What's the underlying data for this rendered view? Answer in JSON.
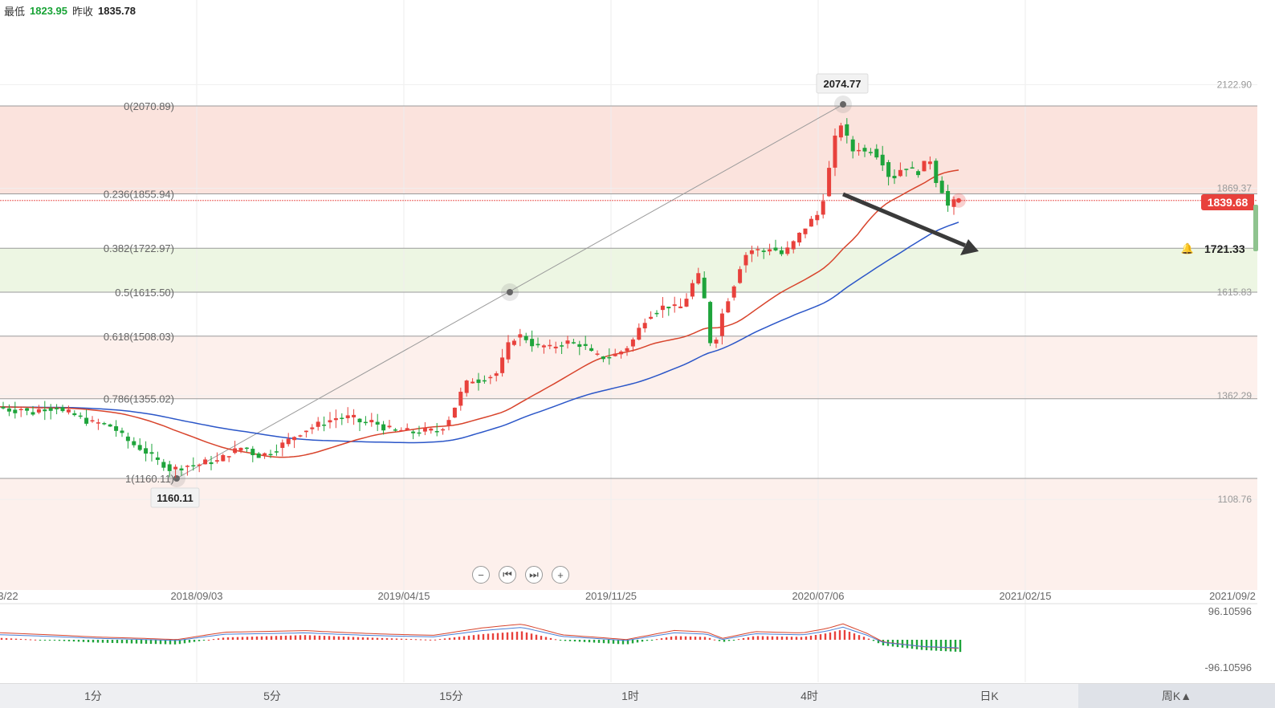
{
  "header": {
    "low_label": "最低",
    "low_value": "1823.95",
    "prev_label": "昨收",
    "prev_value": "1835.78"
  },
  "colors": {
    "up": "#e8413c",
    "down": "#1ea43b",
    "ma_red": "#d8442c",
    "ma_blue": "#2b56c8",
    "fib_red_band": "#fbe3dd",
    "fib_green_band": "#edf6e3"
  },
  "chart_data": {
    "type": "candlestick",
    "x_ticks": [
      "3/22",
      "2018/09/03",
      "2019/04/15",
      "2019/11/25",
      "2020/07/06",
      "2021/02/15",
      "2021/09/2"
    ],
    "y_ticks": [
      "2122.90",
      "1869.37",
      "1615.83",
      "1362.29",
      "1108.76"
    ],
    "ylim": [
      1020,
      2160
    ],
    "fibonacci": [
      {
        "label": "0(2070.89)",
        "price": 2070.89
      },
      {
        "label": "0.236(1855.94)",
        "price": 1855.94
      },
      {
        "label": "0.382(1722.97)",
        "price": 1722.97
      },
      {
        "label": "0.5(1615.50)",
        "price": 1615.5
      },
      {
        "label": "0.618(1508.03)",
        "price": 1508.03
      },
      {
        "label": "0.786(1355.02)",
        "price": 1355.02
      },
      {
        "label": "1(1160.11)",
        "price": 1160.11
      }
    ],
    "high_marker": "2074.77",
    "low_marker": "1160.11",
    "last_price": "1839.68",
    "alert_price": "1721.33",
    "waypoints": [
      [
        0,
        1335
      ],
      [
        10,
        1330
      ],
      [
        20,
        1326
      ],
      [
        30,
        1332
      ],
      [
        40,
        1318
      ],
      [
        48,
        1324
      ],
      [
        56,
        1334
      ],
      [
        64,
        1330
      ],
      [
        72,
        1338
      ],
      [
        80,
        1322
      ],
      [
        88,
        1320
      ],
      [
        96,
        1314
      ],
      [
        104,
        1308
      ],
      [
        112,
        1300
      ],
      [
        120,
        1294
      ],
      [
        128,
        1296
      ],
      [
        136,
        1290
      ],
      [
        144,
        1286
      ],
      [
        152,
        1268
      ],
      [
        160,
        1255
      ],
      [
        168,
        1244
      ],
      [
        176,
        1236
      ],
      [
        184,
        1226
      ],
      [
        192,
        1212
      ],
      [
        200,
        1200
      ],
      [
        208,
        1194
      ],
      [
        216,
        1180
      ],
      [
        224,
        1186
      ],
      [
        232,
        1190
      ],
      [
        240,
        1194
      ],
      [
        248,
        1192
      ],
      [
        256,
        1198
      ],
      [
        264,
        1202
      ],
      [
        272,
        1200
      ],
      [
        280,
        1210
      ],
      [
        288,
        1222
      ],
      [
        296,
        1228
      ],
      [
        304,
        1236
      ],
      [
        312,
        1232
      ],
      [
        320,
        1218
      ],
      [
        328,
        1216
      ],
      [
        336,
        1222
      ],
      [
        344,
        1230
      ],
      [
        352,
        1240
      ],
      [
        360,
        1250
      ],
      [
        368,
        1262
      ],
      [
        376,
        1272
      ],
      [
        384,
        1280
      ],
      [
        392,
        1286
      ],
      [
        400,
        1292
      ],
      [
        408,
        1298
      ],
      [
        416,
        1304
      ],
      [
        424,
        1310
      ],
      [
        432,
        1306
      ],
      [
        440,
        1312
      ],
      [
        448,
        1300
      ],
      [
        456,
        1296
      ],
      [
        464,
        1300
      ],
      [
        472,
        1294
      ],
      [
        480,
        1286
      ],
      [
        488,
        1280
      ],
      [
        496,
        1276
      ],
      [
        504,
        1278
      ],
      [
        512,
        1274
      ],
      [
        520,
        1272
      ],
      [
        528,
        1276
      ],
      [
        536,
        1278
      ],
      [
        544,
        1274
      ],
      [
        552,
        1282
      ],
      [
        560,
        1300
      ],
      [
        568,
        1330
      ],
      [
        576,
        1365
      ],
      [
        584,
        1392
      ],
      [
        592,
        1402
      ],
      [
        600,
        1400
      ],
      [
        608,
        1408
      ],
      [
        616,
        1412
      ],
      [
        624,
        1420
      ],
      [
        632,
        1470
      ],
      [
        640,
        1500
      ],
      [
        648,
        1510
      ],
      [
        656,
        1506
      ],
      [
        664,
        1492
      ],
      [
        672,
        1480
      ],
      [
        680,
        1484
      ],
      [
        688,
        1478
      ],
      [
        696,
        1486
      ],
      [
        704,
        1490
      ],
      [
        712,
        1494
      ],
      [
        720,
        1486
      ],
      [
        728,
        1490
      ],
      [
        736,
        1470
      ],
      [
        744,
        1460
      ],
      [
        752,
        1456
      ],
      [
        760,
        1458
      ],
      [
        768,
        1462
      ],
      [
        776,
        1470
      ],
      [
        784,
        1482
      ],
      [
        792,
        1500
      ],
      [
        800,
        1530
      ],
      [
        808,
        1555
      ],
      [
        816,
        1568
      ],
      [
        824,
        1574
      ],
      [
        832,
        1584
      ],
      [
        840,
        1580
      ],
      [
        848,
        1572
      ],
      [
        856,
        1594
      ],
      [
        864,
        1630
      ],
      [
        872,
        1660
      ],
      [
        880,
        1600
      ],
      [
        888,
        1490
      ],
      [
        896,
        1510
      ],
      [
        904,
        1576
      ],
      [
        912,
        1610
      ],
      [
        920,
        1650
      ],
      [
        928,
        1700
      ],
      [
        936,
        1716
      ],
      [
        944,
        1722
      ],
      [
        952,
        1710
      ],
      [
        960,
        1726
      ],
      [
        968,
        1720
      ],
      [
        976,
        1708
      ],
      [
        984,
        1720
      ],
      [
        992,
        1738
      ],
      [
        1000,
        1760
      ],
      [
        1008,
        1780
      ],
      [
        1016,
        1796
      ],
      [
        1024,
        1810
      ],
      [
        1032,
        1880
      ],
      [
        1040,
        1960
      ],
      [
        1048,
        2040
      ],
      [
        1056,
        2000
      ],
      [
        1064,
        1960
      ],
      [
        1072,
        1970
      ],
      [
        1080,
        1958
      ],
      [
        1088,
        1966
      ],
      [
        1096,
        1950
      ],
      [
        1104,
        1930
      ],
      [
        1112,
        1890
      ],
      [
        1120,
        1904
      ],
      [
        1128,
        1926
      ],
      [
        1136,
        1916
      ],
      [
        1144,
        1906
      ],
      [
        1152,
        1920
      ],
      [
        1160,
        1950
      ],
      [
        1168,
        1892
      ],
      [
        1176,
        1866
      ],
      [
        1184,
        1824
      ],
      [
        1192,
        1836
      ],
      [
        1196,
        1839.68
      ]
    ],
    "macd_ylim": [
      -96.10596,
      96.10596
    ],
    "macd_labels": [
      "96.10596",
      "-96.10596"
    ],
    "macd_hist": [
      [
        0,
        4
      ],
      [
        120,
        -6
      ],
      [
        220,
        -10
      ],
      [
        280,
        5
      ],
      [
        380,
        10
      ],
      [
        470,
        4
      ],
      [
        540,
        0
      ],
      [
        600,
        12
      ],
      [
        650,
        18
      ],
      [
        700,
        -2
      ],
      [
        780,
        -10
      ],
      [
        840,
        8
      ],
      [
        880,
        6
      ],
      [
        900,
        -5
      ],
      [
        940,
        8
      ],
      [
        1000,
        6
      ],
      [
        1030,
        14
      ],
      [
        1050,
        22
      ],
      [
        1080,
        4
      ],
      [
        1100,
        -12
      ],
      [
        1150,
        -22
      ],
      [
        1196,
        -26
      ]
    ]
  },
  "zoom_controls": [
    "−",
    "⏮",
    "⏭",
    "+"
  ],
  "timeframes": {
    "labels": [
      "1分",
      "5分",
      "15分",
      "1时",
      "4时",
      "日K"
    ],
    "weekly": "周K▲"
  }
}
